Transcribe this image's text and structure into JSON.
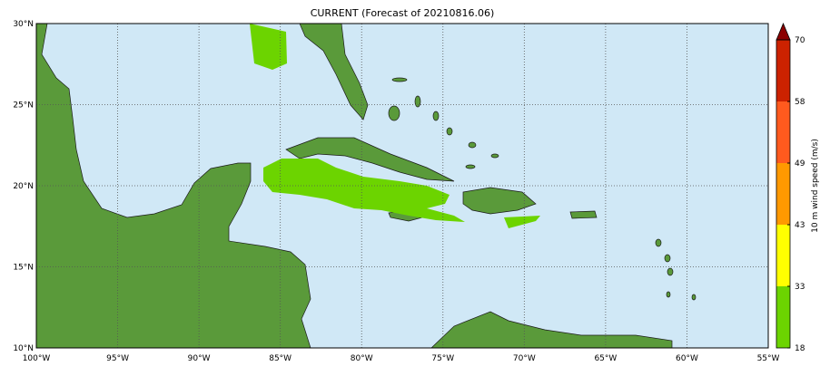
{
  "title": "CURRENT (Forecast of 20210816.06)",
  "map": {
    "lon_range": [
      -100,
      -55
    ],
    "lat_range": [
      10,
      30
    ],
    "lon_labels": [
      "100°W",
      "95°W",
      "90°W",
      "85°W",
      "80°W",
      "75°W",
      "70°W",
      "65°W",
      "60°W",
      "55°W"
    ],
    "lat_labels": [
      "10°N",
      "15°N",
      "20°N",
      "25°N",
      "30°N"
    ],
    "grid": true,
    "ocean_color": "#d0e8f6",
    "land_color": "#5a9a3a"
  },
  "colorbar": {
    "label": "10 m wind speed (m/s)",
    "ticks": [
      "18",
      "33",
      "43",
      "49",
      "58",
      "70"
    ],
    "colors": [
      "#6cd400",
      "#ffff00",
      "#ff9900",
      "#ff5a1e",
      "#cc2200"
    ],
    "extend_color": "#8b0000",
    "extend": "max"
  },
  "wind_field": {
    "category_shown": "18-33",
    "color": "#6cd400"
  }
}
